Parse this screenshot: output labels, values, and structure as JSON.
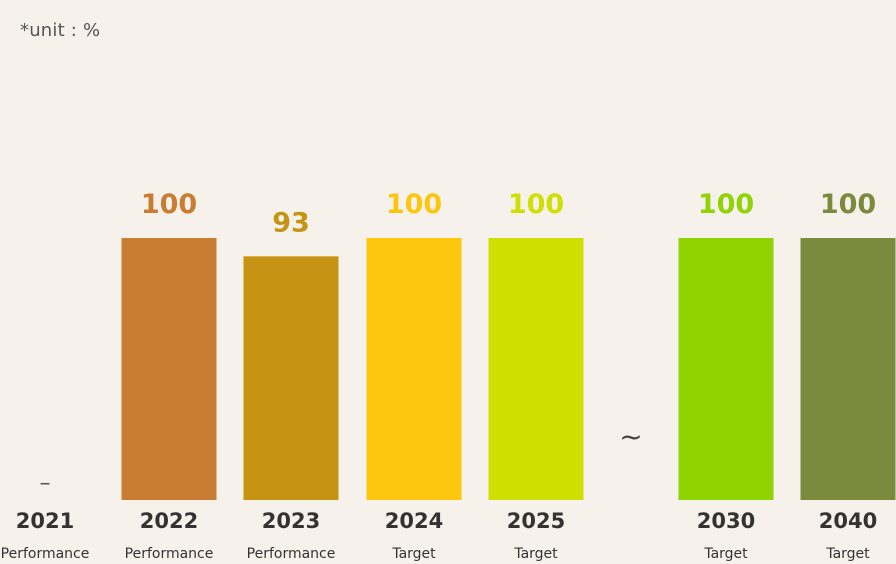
{
  "unit_note": "*unit : %",
  "break_mark": "~",
  "chart_data": {
    "type": "bar",
    "categories": [
      "2021",
      "2022",
      "2023",
      "2024",
      "2025",
      "2030",
      "2040"
    ],
    "sublabels": [
      "Performance",
      "Performance",
      "Performance",
      "Target",
      "Target",
      "Target",
      "Target"
    ],
    "values": [
      null,
      100,
      93,
      100,
      100,
      100,
      100
    ],
    "value_labels": [
      "–",
      "100",
      "93",
      "100",
      "100",
      "100",
      "100"
    ],
    "colors": [
      "#555555",
      "#c97d33",
      "#c69312",
      "#ffc60f",
      "#cfdf00",
      "#8fd400",
      "#7b8a3d"
    ],
    "ylim": [
      0,
      100
    ],
    "axis_break_after": "2025",
    "grid": false,
    "legend": "none"
  }
}
